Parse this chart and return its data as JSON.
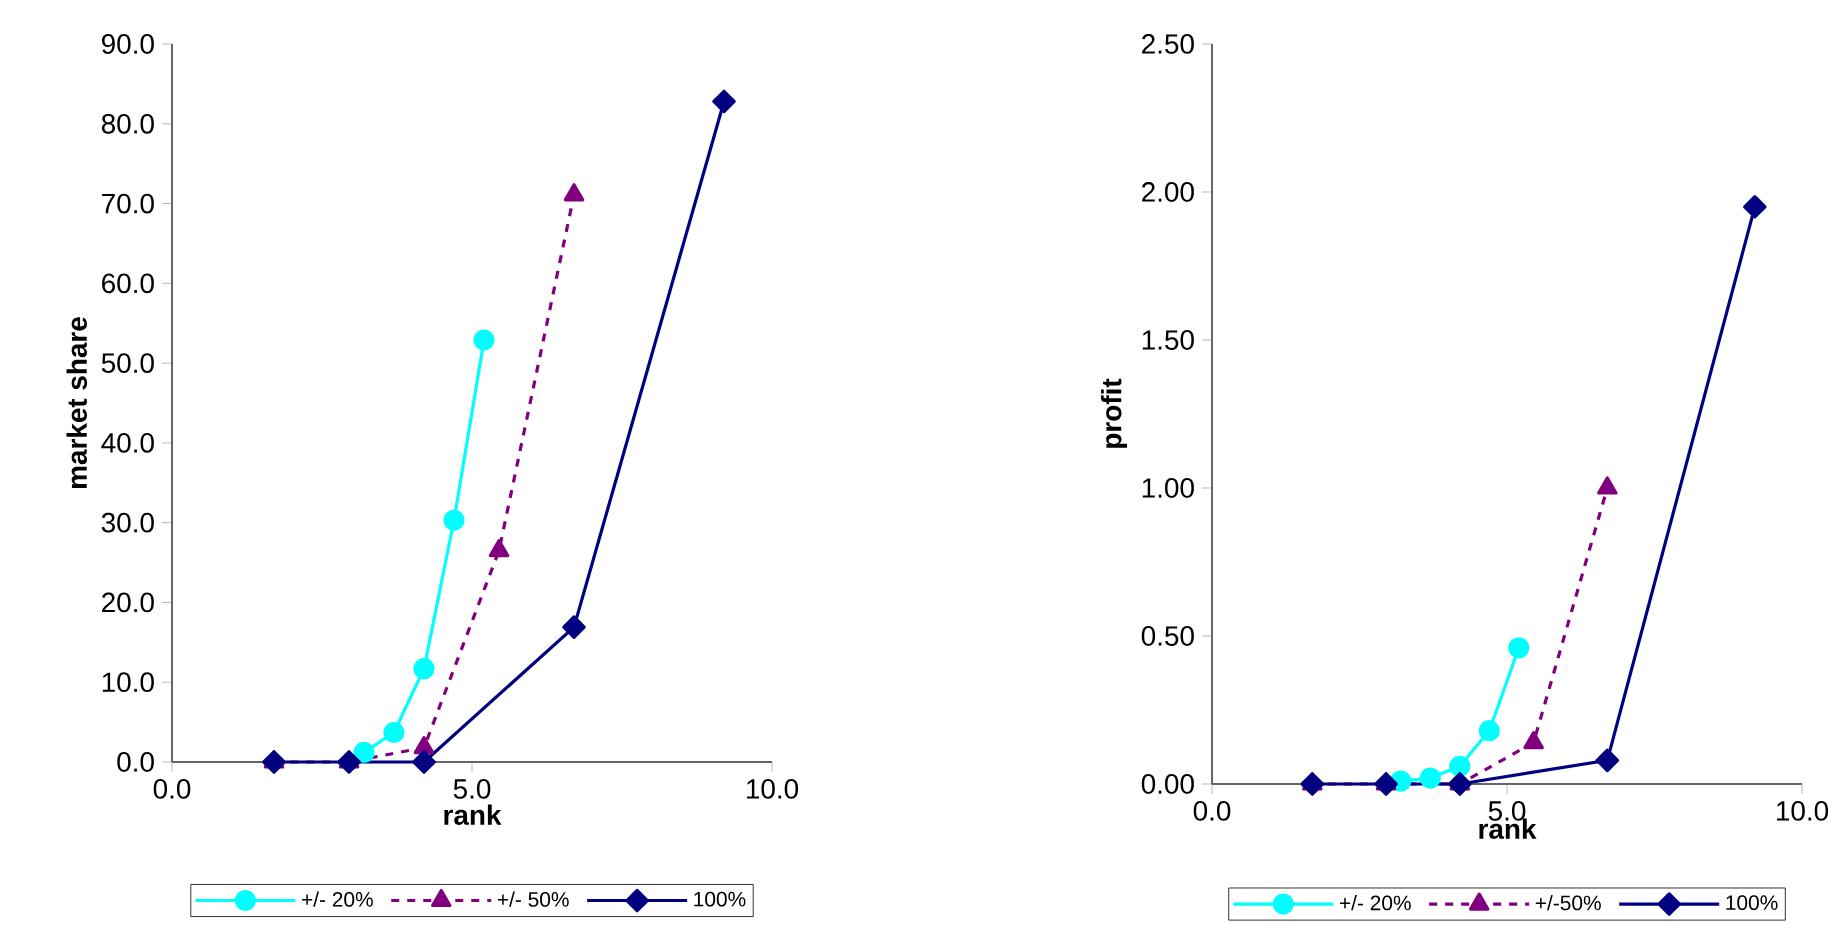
{
  "chart_data": [
    {
      "type": "line",
      "xlabel": "rank",
      "ylabel": "market share",
      "legend": "bottom",
      "xlim": [
        0,
        10
      ],
      "ylim": [
        0,
        90
      ],
      "xticks": [
        {
          "value": 0,
          "label": "0.0"
        },
        {
          "value": 5,
          "label": "5.0"
        },
        {
          "value": 10,
          "label": "10.0"
        }
      ],
      "yticks": [
        {
          "value": 0,
          "label": "0.0"
        },
        {
          "value": 10,
          "label": "10.0"
        },
        {
          "value": 20,
          "label": "20.0"
        },
        {
          "value": 30,
          "label": "30.0"
        },
        {
          "value": 40,
          "label": "40.0"
        },
        {
          "value": 50,
          "label": "50.0"
        },
        {
          "value": 60,
          "label": "60.0"
        },
        {
          "value": 70,
          "label": "70.0"
        },
        {
          "value": 80,
          "label": "80.0"
        },
        {
          "value": 90,
          "label": "90.0"
        }
      ],
      "series": [
        {
          "name": "+/- 20%",
          "color": "#00ffff",
          "marker": "circle",
          "line_style": "solid",
          "x": [
            3.2,
            3.7,
            4.2,
            4.7,
            5.2
          ],
          "values": [
            1.2,
            3.7,
            11.7,
            30.3,
            52.9
          ]
        },
        {
          "name": "+/- 50%",
          "color": "#800080",
          "marker": "triangle",
          "line_style": "dashed",
          "x": [
            1.7,
            2.95,
            4.2,
            5.45,
            6.7
          ],
          "values": [
            0,
            0,
            1.8,
            26.5,
            71.1
          ]
        },
        {
          "name": "100%",
          "color": "#000080",
          "marker": "diamond",
          "line_style": "solid",
          "x": [
            1.7,
            2.95,
            4.2,
            6.7,
            9.2
          ],
          "values": [
            0,
            0,
            0,
            16.9,
            82.8
          ]
        }
      ]
    },
    {
      "type": "line",
      "xlabel": "rank",
      "ylabel": "profit",
      "legend": "bottom",
      "xlim": [
        0,
        10
      ],
      "ylim": [
        0,
        2.5
      ],
      "xticks": [
        {
          "value": 0,
          "label": "0.0"
        },
        {
          "value": 5,
          "label": "5.0"
        },
        {
          "value": 10,
          "label": "10.0"
        }
      ],
      "yticks": [
        {
          "value": 0,
          "label": "0.00"
        },
        {
          "value": 0.5,
          "label": "0.50"
        },
        {
          "value": 1,
          "label": "1.00"
        },
        {
          "value": 1.5,
          "label": "1.50"
        },
        {
          "value": 2,
          "label": "2.00"
        },
        {
          "value": 2.5,
          "label": "2.50"
        }
      ],
      "series": [
        {
          "name": "+/- 20%",
          "color": "#00ffff",
          "marker": "circle",
          "line_style": "solid",
          "x": [
            3.2,
            3.7,
            4.2,
            4.7,
            5.2
          ],
          "values": [
            0.01,
            0.02,
            0.06,
            0.18,
            0.46
          ]
        },
        {
          "name": "+/-50%",
          "color": "#800080",
          "marker": "triangle",
          "line_style": "dashed",
          "x": [
            1.7,
            2.95,
            4.2,
            5.45,
            6.7
          ],
          "values": [
            0,
            0,
            0,
            0.14,
            1.0
          ]
        },
        {
          "name": "100%",
          "color": "#000080",
          "marker": "diamond",
          "line_style": "solid",
          "x": [
            1.7,
            2.95,
            4.2,
            6.7,
            9.2
          ],
          "values": [
            0,
            0,
            0,
            0.08,
            1.95
          ]
        }
      ]
    }
  ]
}
